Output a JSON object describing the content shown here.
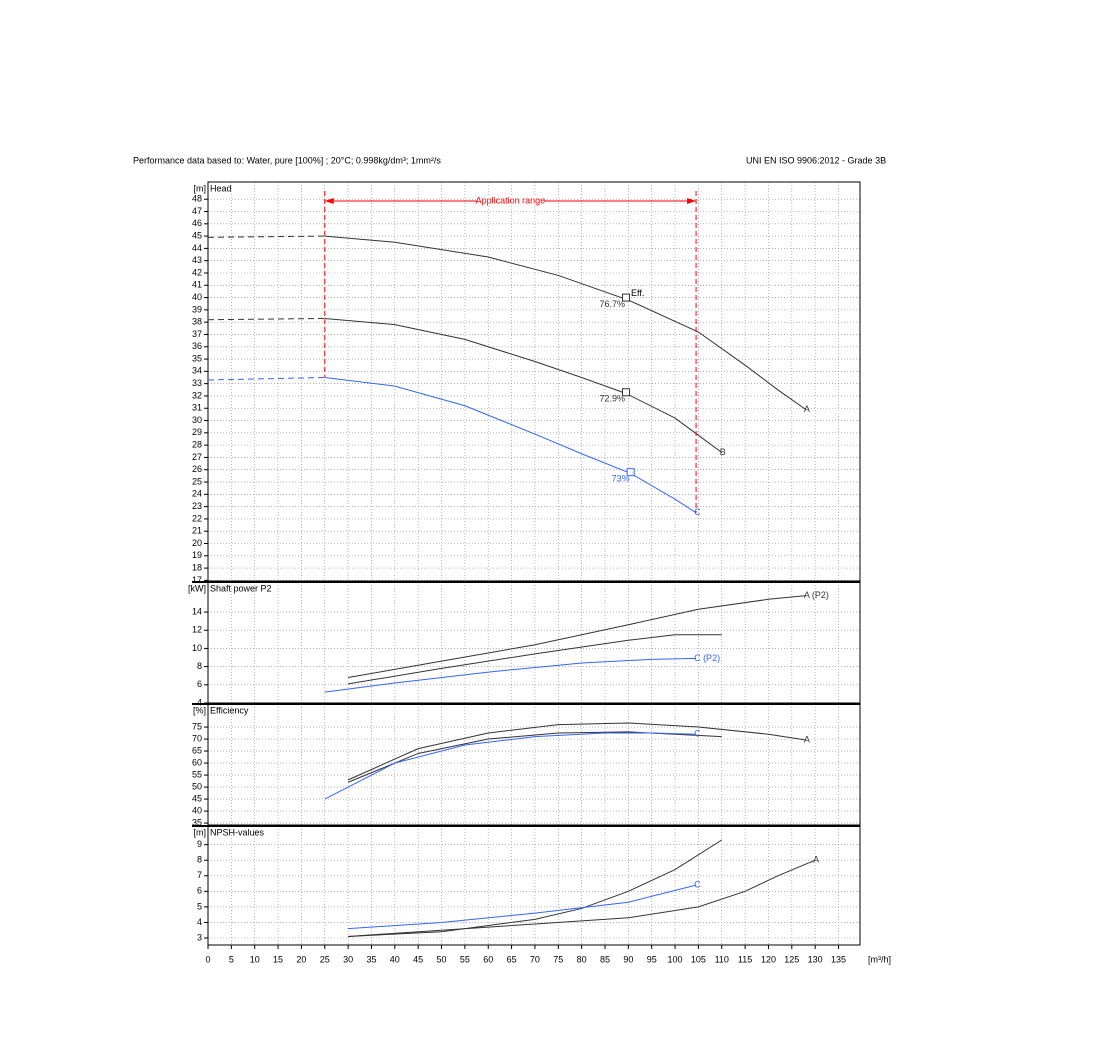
{
  "header": {
    "left": "Performance data based to:  Water, pure [100%] ; 20°C; 0.998kg/dm³; 1mm²/s",
    "right": "UNI EN ISO 9906:2012 - Grade 3B"
  },
  "chart_data": [
    {
      "type": "line",
      "title": "Head",
      "y_unit": "[m]",
      "xlim": [
        0,
        139.6
      ],
      "ylim": [
        16.95,
        49.4
      ],
      "yticks": [
        17,
        18,
        19,
        20,
        21,
        22,
        23,
        24,
        25,
        26,
        27,
        28,
        29,
        30,
        31,
        32,
        33,
        34,
        35,
        36,
        37,
        38,
        39,
        40,
        41,
        42,
        43,
        44,
        45,
        46,
        47,
        48
      ],
      "application_range": {
        "label": "Application range",
        "x": [
          25,
          104.5
        ],
        "color": "#ff0000"
      },
      "series": [
        {
          "name": "A",
          "color": "#333333",
          "x": [
            0,
            25,
            40,
            60,
            75,
            90,
            105,
            115,
            122,
            128
          ],
          "values": [
            44.9,
            45,
            44.5,
            43.3,
            41.8,
            39.8,
            37.2,
            34.5,
            32.5,
            30.9
          ]
        },
        {
          "name": "B",
          "color": "#333333",
          "x": [
            0,
            25,
            40,
            55,
            70,
            80,
            89.5,
            100,
            105,
            110
          ],
          "values": [
            38.2,
            38.3,
            37.8,
            36.6,
            34.8,
            33.5,
            32.2,
            30.2,
            28.8,
            27.4
          ]
        },
        {
          "name": "C",
          "color": "#3366ff",
          "x": [
            0,
            25,
            40,
            55,
            70,
            80,
            90.5,
            100,
            104.5
          ],
          "values": [
            33.3,
            33.5,
            32.8,
            31.2,
            28.9,
            27.3,
            25.7,
            23.6,
            22.5
          ]
        }
      ],
      "annotation": "Eff.",
      "duty_points": [
        {
          "x": 89.5,
          "y": 40.0,
          "label": "76.7%",
          "color": "#333333"
        },
        {
          "x": 89.5,
          "y": 32.3,
          "label": "72.9%",
          "color": "#333333"
        },
        {
          "x": 90.5,
          "y": 25.8,
          "label": "73%",
          "color": "#3366ff"
        }
      ]
    },
    {
      "type": "line",
      "title": "Shaft power P2",
      "y_unit": "[kW]",
      "xlim": [
        0,
        139.6
      ],
      "ylim": [
        4,
        17.3
      ],
      "yticks": [
        4,
        6,
        8,
        10,
        12,
        14
      ],
      "series": [
        {
          "name": "A (P2)",
          "color": "#333333",
          "x": [
            30,
            50,
            70,
            90,
            105,
            120,
            128
          ],
          "values": [
            6.8,
            8.6,
            10.4,
            12.6,
            14.3,
            15.4,
            15.8
          ]
        },
        {
          "color": "#333333",
          "x": [
            30,
            50,
            70,
            90,
            100,
            110
          ],
          "values": [
            6.1,
            7.8,
            9.4,
            10.9,
            11.5,
            11.5
          ]
        },
        {
          "name": "C (P2)",
          "color": "#3366ff",
          "x": [
            25,
            40,
            60,
            80,
            95,
            104.5
          ],
          "values": [
            5.2,
            6.2,
            7.4,
            8.4,
            8.8,
            8.9
          ]
        }
      ]
    },
    {
      "type": "line",
      "title": "Efficiency",
      "y_unit": "[%]",
      "xlim": [
        0,
        139.6
      ],
      "ylim": [
        34.2,
        84.6
      ],
      "yticks": [
        35,
        40,
        45,
        50,
        55,
        60,
        65,
        70,
        75
      ],
      "series": [
        {
          "name": "A",
          "color": "#333333",
          "x": [
            30,
            45,
            60,
            75,
            90,
            105,
            120,
            128
          ],
          "values": [
            53,
            66,
            72.5,
            76,
            76.7,
            75,
            72,
            69.6
          ]
        },
        {
          "color": "#333333",
          "x": [
            30,
            45,
            60,
            75,
            90,
            100,
            110
          ],
          "values": [
            52,
            64,
            70,
            72.5,
            73,
            72,
            71
          ]
        },
        {
          "name": "C",
          "color": "#3366ff",
          "x": [
            25,
            40,
            55,
            70,
            85,
            95,
            104.5
          ],
          "values": [
            45,
            60,
            67.5,
            71,
            72.5,
            72.5,
            72
          ]
        }
      ]
    },
    {
      "type": "line",
      "title": "NPSH-values",
      "y_unit": "[m]",
      "x_unit": "[m³/h]",
      "xlim": [
        0,
        139.6
      ],
      "ylim": [
        2.55,
        10.2
      ],
      "yticks": [
        3,
        4,
        5,
        6,
        7,
        8,
        9
      ],
      "xticks": [
        0,
        5,
        10,
        15,
        20,
        25,
        30,
        35,
        40,
        45,
        50,
        55,
        60,
        65,
        70,
        75,
        80,
        85,
        90,
        95,
        100,
        105,
        110,
        115,
        120,
        125,
        130,
        135
      ],
      "series": [
        {
          "name": "A",
          "color": "#333333",
          "x": [
            30,
            50,
            70,
            90,
            105,
            115,
            122,
            130
          ],
          "values": [
            3.1,
            3.5,
            3.9,
            4.3,
            5.0,
            6.0,
            7.0,
            8.0
          ]
        },
        {
          "color": "#333333",
          "x": [
            30,
            50,
            70,
            80,
            90,
            100,
            110
          ],
          "values": [
            3.1,
            3.4,
            4.2,
            4.9,
            6.0,
            7.4,
            9.3
          ]
        },
        {
          "name": "C",
          "color": "#3366ff",
          "x": [
            30,
            50,
            70,
            90,
            104.5
          ],
          "values": [
            3.6,
            4.0,
            4.6,
            5.3,
            6.4
          ]
        }
      ]
    }
  ]
}
